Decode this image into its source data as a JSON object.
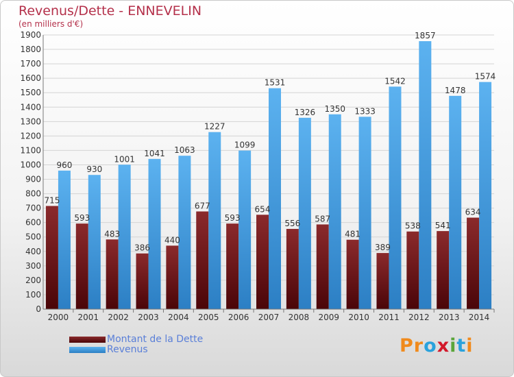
{
  "chart_data": {
    "type": "bar",
    "title": "Revenus/Dette - ENNEVELIN",
    "subtitle": "(en milliers d'€)",
    "categories": [
      "2000",
      "2001",
      "2002",
      "2003",
      "2004",
      "2005",
      "2006",
      "2007",
      "2008",
      "2009",
      "2010",
      "2011",
      "2012",
      "2013",
      "2014"
    ],
    "series": [
      {
        "name": "Montant de la Dette",
        "color": "#7a1f20",
        "values": [
          715,
          593,
          483,
          386,
          440,
          677,
          593,
          654,
          556,
          587,
          481,
          389,
          538,
          541,
          634
        ]
      },
      {
        "name": "Revenus",
        "color": "#4aa3e8",
        "values": [
          960,
          930,
          1001,
          1041,
          1063,
          1227,
          1099,
          1531,
          1326,
          1350,
          1333,
          1542,
          1857,
          1478,
          1574
        ]
      }
    ],
    "ylim": [
      0,
      1900
    ],
    "ytick_step": 100,
    "grid": true,
    "legend_position": "bottom-left"
  },
  "legend": {
    "items": [
      {
        "label": "Montant de la Dette",
        "color": "#7a1f20"
      },
      {
        "label": "Revenus",
        "color": "#4aa3e8"
      }
    ]
  },
  "logo": {
    "text": "Proxiti"
  }
}
